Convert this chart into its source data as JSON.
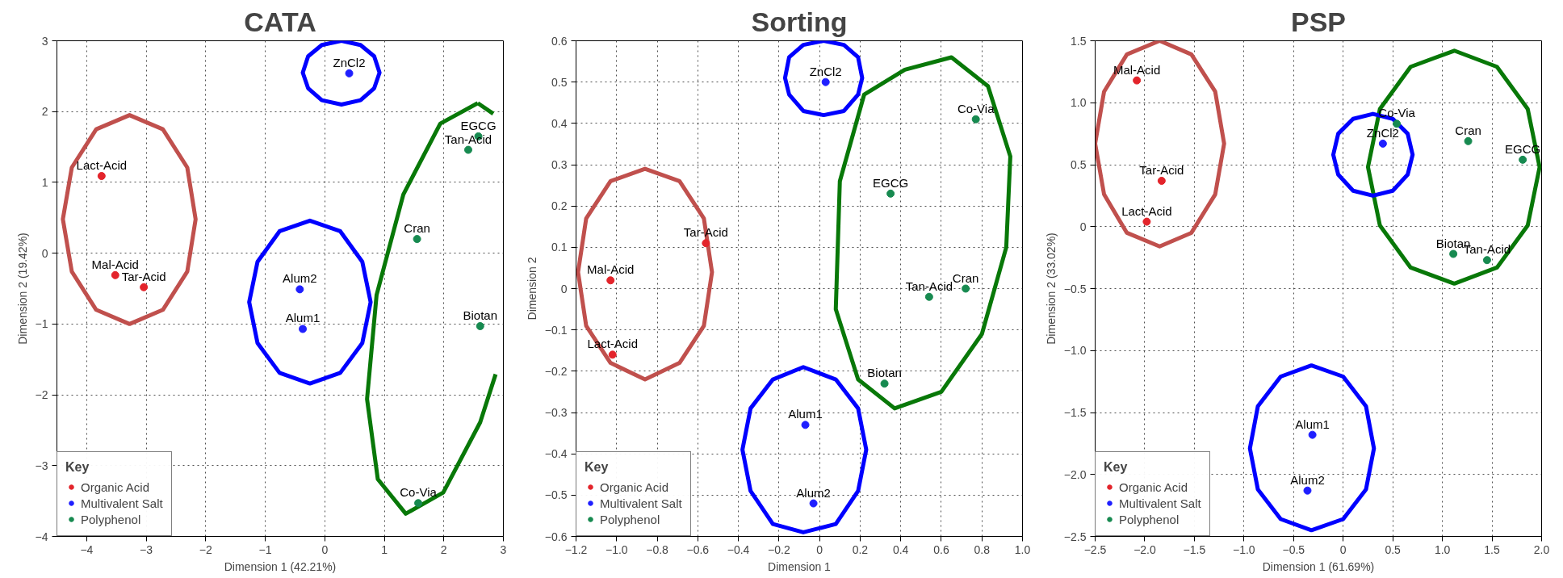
{
  "chart_data": [
    {
      "type": "scatter",
      "title": "CATA",
      "xlabel": "Dimension 1 (42.21%)",
      "ylabel": "Dimension 2 (19.42%)",
      "legend_title": "Key",
      "legend": "bottom left",
      "grid": true,
      "line_style": "solid",
      "xlim": [
        -4.5,
        3
      ],
      "ylim": [
        -4,
        3
      ],
      "xticks": [
        {
          "value": -4,
          "label": "−4"
        },
        {
          "value": -3,
          "label": "−3"
        },
        {
          "value": -2,
          "label": "−2"
        },
        {
          "value": -1,
          "label": "−1"
        },
        0,
        1,
        2,
        3
      ],
      "yticks": [
        {
          "value": -4,
          "label": "−4"
        },
        {
          "value": -3,
          "label": "−3"
        },
        {
          "value": -2,
          "label": "−2"
        },
        {
          "value": -1,
          "label": "−1"
        },
        0,
        1,
        2,
        3
      ],
      "series": [
        {
          "name": "Organic Acid",
          "marker": "circle",
          "color": "#e3242b",
          "x": [
            -3.75,
            -3.52,
            -3.04
          ],
          "values": [
            1.09,
            -0.31,
            -0.48
          ]
        },
        {
          "name": "Multivalent Salt",
          "marker": "circle",
          "color": "#1f1fff",
          "x": [
            0.41,
            -0.42,
            -0.37
          ],
          "values": [
            2.54,
            -0.51,
            -1.07
          ]
        },
        {
          "name": "Polyphenol",
          "marker": "circle",
          "color": "#178a50",
          "x": [
            2.58,
            2.41,
            1.55,
            2.61,
            1.57
          ],
          "values": [
            1.65,
            1.46,
            0.2,
            -1.03,
            -3.53
          ]
        },
        {
          "type": "line",
          "color": "#c0504d",
          "x": [
            -2.17,
            -2.31,
            -2.72,
            -3.28,
            -3.84,
            -4.25,
            -4.4,
            -4.25,
            -3.84,
            -3.28,
            -2.72,
            -2.31,
            -2.17,
            -2.31
          ],
          "values": [
            0.48,
            1.21,
            1.75,
            1.95,
            1.75,
            1.21,
            0.48,
            -0.26,
            -0.8,
            -1.0,
            -0.8,
            -0.26,
            0.48,
            1.21
          ]
        },
        {
          "type": "line",
          "color": "#0000ff",
          "x": [
            0.92,
            0.83,
            0.6,
            0.28,
            -0.05,
            -0.28,
            -0.37,
            -0.28,
            -0.05,
            0.28,
            0.6,
            0.83,
            0.92,
            0.83
          ],
          "values": [
            2.55,
            2.78,
            2.94,
            3.0,
            2.94,
            2.78,
            2.55,
            2.33,
            2.16,
            2.1,
            2.16,
            2.33,
            2.55,
            2.78
          ]
        },
        {
          "type": "line",
          "color": "#0000ff",
          "x": [
            0.77,
            0.63,
            0.26,
            -0.25,
            -0.76,
            -1.13,
            -1.27,
            -1.13,
            -0.76,
            -0.25,
            0.26,
            0.63,
            0.77,
            0.63
          ],
          "values": [
            -0.69,
            -0.12,
            0.31,
            0.46,
            0.31,
            -0.12,
            -0.69,
            -1.27,
            -1.69,
            -1.84,
            -1.69,
            -1.27,
            -0.69,
            -0.12
          ]
        },
        {
          "type": "line",
          "color": "#087808",
          "x": [
            2.57,
            2.83,
            null,
            2.87,
            2.61,
            1.99,
            1.36,
            0.89,
            0.71,
            0.87,
            1.32,
            1.94,
            2.57
          ],
          "values": [
            2.12,
            1.97,
            null,
            -1.71,
            -2.39,
            -3.38,
            -3.68,
            -3.19,
            -2.06,
            -0.59,
            0.83,
            1.83,
            2.12
          ]
        }
      ],
      "annotations": [
        {
          "text": "Lact-Acid",
          "x": -3.75,
          "y": 1.09
        },
        {
          "text": "Mal-Acid",
          "x": -3.52,
          "y": -0.31
        },
        {
          "text": "Tar-Acid",
          "x": -3.04,
          "y": -0.48
        },
        {
          "text": "ZnCl2",
          "x": 0.41,
          "y": 2.54
        },
        {
          "text": "Alum2",
          "x": -0.42,
          "y": -0.51
        },
        {
          "text": "Alum1",
          "x": -0.37,
          "y": -1.07
        },
        {
          "text": "EGCG",
          "x": 2.58,
          "y": 1.65
        },
        {
          "text": "Tan-Acid",
          "x": 2.41,
          "y": 1.46
        },
        {
          "text": "Cran",
          "x": 1.55,
          "y": 0.2
        },
        {
          "text": "Biotan",
          "x": 2.61,
          "y": -1.03
        },
        {
          "text": "Co-Via",
          "x": 1.57,
          "y": -3.53
        }
      ]
    },
    {
      "type": "scatter",
      "title": "Sorting",
      "xlabel": "Dimension 1",
      "ylabel": "Dimension 2",
      "legend_title": "Key",
      "legend": "bottom left",
      "grid": true,
      "line_style": "solid",
      "xlim": [
        -1.2,
        1.0
      ],
      "ylim": [
        -0.6,
        0.6
      ],
      "xticks": [
        {
          "value": -1.2,
          "label": "−1.2"
        },
        {
          "value": -1.0,
          "label": "−1.0"
        },
        {
          "value": -0.8,
          "label": "−0.8"
        },
        {
          "value": -0.6,
          "label": "−0.6"
        },
        {
          "value": -0.4,
          "label": "−0.4"
        },
        {
          "value": -0.2,
          "label": "−0.2"
        },
        0,
        0.2,
        0.4,
        0.6,
        0.8,
        {
          "value": 1.0,
          "label": "1.0"
        }
      ],
      "yticks": [
        {
          "value": -0.6,
          "label": "−0.6"
        },
        {
          "value": -0.5,
          "label": "−0.5"
        },
        {
          "value": -0.4,
          "label": "−0.4"
        },
        {
          "value": -0.3,
          "label": "−0.3"
        },
        {
          "value": -0.2,
          "label": "−0.2"
        },
        {
          "value": -0.1,
          "label": "−0.1"
        },
        0,
        0.1,
        0.2,
        0.3,
        0.4,
        0.5,
        0.6
      ],
      "series": [
        {
          "name": "Organic Acid",
          "marker": "circle",
          "color": "#e3242b",
          "x": [
            -0.56,
            -1.03,
            -1.02
          ],
          "values": [
            0.11,
            0.02,
            -0.16
          ]
        },
        {
          "name": "Multivalent Salt",
          "marker": "circle",
          "color": "#1f1fff",
          "x": [
            0.03,
            -0.07,
            -0.03
          ],
          "values": [
            0.5,
            -0.33,
            -0.52
          ]
        },
        {
          "name": "Polyphenol",
          "marker": "circle",
          "color": "#178a50",
          "x": [
            0.77,
            0.35,
            0.54,
            0.72,
            0.32
          ],
          "values": [
            0.41,
            0.23,
            -0.02,
            0.0,
            -0.23
          ]
        },
        {
          "type": "line",
          "color": "#c0504d",
          "x": [
            -0.53,
            -0.57,
            -0.69,
            -0.86,
            -1.03,
            -1.15,
            -1.19,
            -1.15,
            -1.03,
            -0.86,
            -0.69,
            -0.57,
            -0.53,
            -0.57
          ],
          "values": [
            0.04,
            0.17,
            0.26,
            0.29,
            0.26,
            0.17,
            0.04,
            -0.09,
            -0.18,
            -0.22,
            -0.18,
            -0.09,
            0.04,
            0.17
          ]
        },
        {
          "type": "line",
          "color": "#0000ff",
          "x": [
            0.21,
            0.19,
            0.12,
            0.02,
            -0.08,
            -0.15,
            -0.17,
            -0.15,
            -0.08,
            0.02,
            0.12,
            0.19,
            0.21,
            0.19
          ],
          "values": [
            0.51,
            0.56,
            0.59,
            0.6,
            0.59,
            0.56,
            0.51,
            0.47,
            0.43,
            0.42,
            0.43,
            0.47,
            0.51,
            0.56
          ]
        },
        {
          "type": "line",
          "color": "#0000ff",
          "x": [
            0.23,
            0.19,
            0.08,
            -0.08,
            -0.23,
            -0.34,
            -0.38,
            -0.34,
            -0.23,
            -0.08,
            0.08,
            0.19,
            0.23,
            0.19
          ],
          "values": [
            -0.39,
            -0.29,
            -0.22,
            -0.19,
            -0.22,
            -0.29,
            -0.39,
            -0.49,
            -0.57,
            -0.59,
            -0.57,
            -0.49,
            -0.39,
            -0.29
          ]
        },
        {
          "type": "line",
          "color": "#087808",
          "x": [
            0.65,
            0.83,
            0.94,
            0.92,
            0.8,
            0.6,
            0.37,
            0.19,
            0.08,
            0.1,
            0.22,
            0.42,
            0.65,
            0.83
          ],
          "values": [
            0.56,
            0.49,
            0.32,
            0.1,
            -0.11,
            -0.25,
            -0.29,
            -0.22,
            -0.05,
            0.26,
            0.47,
            0.53,
            0.56,
            0.49
          ]
        }
      ],
      "annotations": [
        {
          "text": "Tar-Acid",
          "x": -0.56,
          "y": 0.11
        },
        {
          "text": "Mal-Acid",
          "x": -1.03,
          "y": 0.02
        },
        {
          "text": "Lact-Acid",
          "x": -1.02,
          "y": -0.16
        },
        {
          "text": "ZnCl2",
          "x": 0.03,
          "y": 0.5
        },
        {
          "text": "Alum1",
          "x": -0.07,
          "y": -0.33
        },
        {
          "text": "Alum2",
          "x": -0.03,
          "y": -0.52
        },
        {
          "text": "Co-Via",
          "x": 0.77,
          "y": 0.41
        },
        {
          "text": "EGCG",
          "x": 0.35,
          "y": 0.23
        },
        {
          "text": "Tan-Acid",
          "x": 0.54,
          "y": -0.02
        },
        {
          "text": "Cran",
          "x": 0.72,
          "y": 0.0
        },
        {
          "text": "Biotan",
          "x": 0.32,
          "y": -0.23
        }
      ]
    },
    {
      "type": "scatter",
      "title": "PSP",
      "xlabel": "Dimension 1 (61.69%)",
      "ylabel": "Dimension 2 (33.02%)",
      "legend_title": "Key",
      "legend": "bottom left",
      "grid": true,
      "line_style": "solid",
      "xlim": [
        -2.5,
        2.0
      ],
      "ylim": [
        -2.5,
        1.5
      ],
      "xticks": [
        {
          "value": -2.5,
          "label": "−2.5"
        },
        {
          "value": -2.0,
          "label": "−2.0"
        },
        {
          "value": -1.5,
          "label": "−1.5"
        },
        {
          "value": -1.0,
          "label": "−1.0"
        },
        {
          "value": -0.5,
          "label": "−0.5"
        },
        0,
        0.5,
        {
          "value": 1.0,
          "label": "1.0"
        },
        1.5,
        {
          "value": 2.0,
          "label": "2.0"
        }
      ],
      "yticks": [
        {
          "value": -2.5,
          "label": "−2.5"
        },
        {
          "value": -2.0,
          "label": "−2.0"
        },
        {
          "value": -1.5,
          "label": "−1.5"
        },
        {
          "value": -1.0,
          "label": "−1.0"
        },
        {
          "value": -0.5,
          "label": "−0.5"
        },
        0,
        0.5,
        {
          "value": 1.0,
          "label": "1.0"
        },
        1.5
      ],
      "series": [
        {
          "name": "Organic Acid",
          "marker": "circle",
          "color": "#e3242b",
          "x": [
            -2.08,
            -1.83,
            -1.98
          ],
          "values": [
            1.18,
            0.37,
            0.04
          ]
        },
        {
          "name": "Multivalent Salt",
          "marker": "circle",
          "color": "#1f1fff",
          "x": [
            0.4,
            -0.31,
            -0.36
          ],
          "values": [
            0.67,
            -1.68,
            -2.13
          ]
        },
        {
          "name": "Polyphenol",
          "marker": "circle",
          "color": "#178a50",
          "x": [
            0.54,
            1.26,
            1.81,
            1.11,
            1.45
          ],
          "values": [
            0.83,
            0.69,
            0.54,
            -0.22,
            -0.27
          ]
        },
        {
          "type": "line",
          "color": "#c0504d",
          "x": [
            -1.2,
            -1.29,
            -1.53,
            -1.85,
            -2.18,
            -2.41,
            -2.5,
            -2.41,
            -2.18,
            -1.85,
            -1.53,
            -1.29,
            -1.2,
            -1.29
          ],
          "values": [
            0.67,
            1.09,
            1.39,
            1.5,
            1.39,
            1.09,
            0.67,
            0.26,
            -0.05,
            -0.16,
            -0.05,
            0.26,
            0.67,
            1.09
          ]
        },
        {
          "type": "line",
          "color": "#087808",
          "x": [
            1.98,
            1.86,
            1.55,
            1.12,
            0.68,
            0.37,
            0.25,
            0.37,
            0.68,
            1.12,
            1.55,
            1.86,
            1.98,
            1.86
          ],
          "values": [
            0.48,
            0.95,
            1.29,
            1.42,
            1.29,
            0.95,
            0.48,
            0.01,
            -0.33,
            -0.46,
            -0.33,
            0.01,
            0.48,
            0.95
          ]
        },
        {
          "type": "line",
          "color": "#0000ff",
          "x": [
            0.7,
            0.65,
            0.5,
            0.3,
            0.1,
            -0.05,
            -0.1,
            -0.05,
            0.1,
            0.3,
            0.5,
            0.65,
            0.7,
            0.65
          ],
          "values": [
            0.58,
            0.75,
            0.87,
            0.91,
            0.87,
            0.75,
            0.58,
            0.42,
            0.29,
            0.25,
            0.29,
            0.42,
            0.58,
            0.75
          ]
        },
        {
          "type": "line",
          "color": "#0000ff",
          "x": [
            0.31,
            0.23,
            0.0,
            -0.32,
            -0.63,
            -0.86,
            -0.94,
            -0.86,
            -0.63,
            -0.32,
            0.0,
            0.23,
            0.31,
            0.23
          ],
          "values": [
            -1.79,
            -1.45,
            -1.21,
            -1.12,
            -1.21,
            -1.45,
            -1.79,
            -2.12,
            -2.36,
            -2.45,
            -2.36,
            -2.12,
            -1.79,
            -1.45
          ]
        }
      ],
      "annotations": [
        {
          "text": "Mal-Acid",
          "x": -2.08,
          "y": 1.18
        },
        {
          "text": "Tar-Acid",
          "x": -1.83,
          "y": 0.37
        },
        {
          "text": "Lact-Acid",
          "x": -1.98,
          "y": 0.04
        },
        {
          "text": "ZnCl2",
          "x": 0.4,
          "y": 0.67
        },
        {
          "text": "Alum1",
          "x": -0.31,
          "y": -1.68
        },
        {
          "text": "Alum2",
          "x": -0.36,
          "y": -2.13
        },
        {
          "text": "Co-Via",
          "x": 0.54,
          "y": 0.83
        },
        {
          "text": "Cran",
          "x": 1.26,
          "y": 0.69
        },
        {
          "text": "EGCG",
          "x": 1.81,
          "y": 0.54
        },
        {
          "text": "Biotan",
          "x": 1.11,
          "y": -0.22
        },
        {
          "text": "Tan-Acid",
          "x": 1.45,
          "y": -0.27
        }
      ]
    }
  ]
}
